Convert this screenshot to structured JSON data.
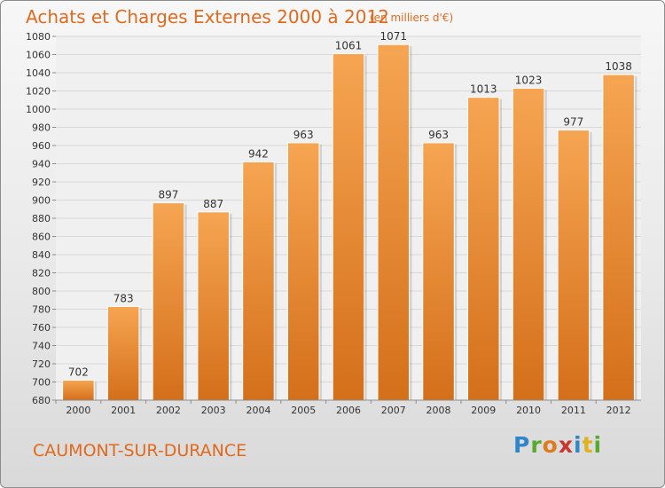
{
  "header": {
    "title": "Achats et Charges Externes 2000 à 2012",
    "subtitle": "(en milliers d'€)"
  },
  "footer": {
    "commune": "CAUMONT-SUR-DURANCE",
    "logo": "Proxiti"
  },
  "colors": {
    "bar_top": "#f6a552",
    "bar_bottom": "#d46f1a",
    "title": "#e06a1e",
    "grid": "#d8d8d8"
  },
  "chart_data": {
    "type": "bar",
    "title": "Achats et Charges Externes 2000 à 2012",
    "subtitle": "(en milliers d'€)",
    "xlabel": "",
    "ylabel": "",
    "categories": [
      "2000",
      "2001",
      "2002",
      "2003",
      "2004",
      "2005",
      "2006",
      "2007",
      "2008",
      "2009",
      "2010",
      "2011",
      "2012"
    ],
    "values": [
      702,
      783,
      897,
      887,
      942,
      963,
      1061,
      1071,
      963,
      1013,
      1023,
      977,
      1038
    ],
    "ylim": [
      680,
      1080
    ],
    "yticks": [
      680,
      700,
      720,
      740,
      760,
      780,
      800,
      820,
      840,
      860,
      880,
      900,
      920,
      940,
      960,
      980,
      1000,
      1020,
      1040,
      1060,
      1080
    ],
    "grid": true,
    "data_labels": true
  }
}
